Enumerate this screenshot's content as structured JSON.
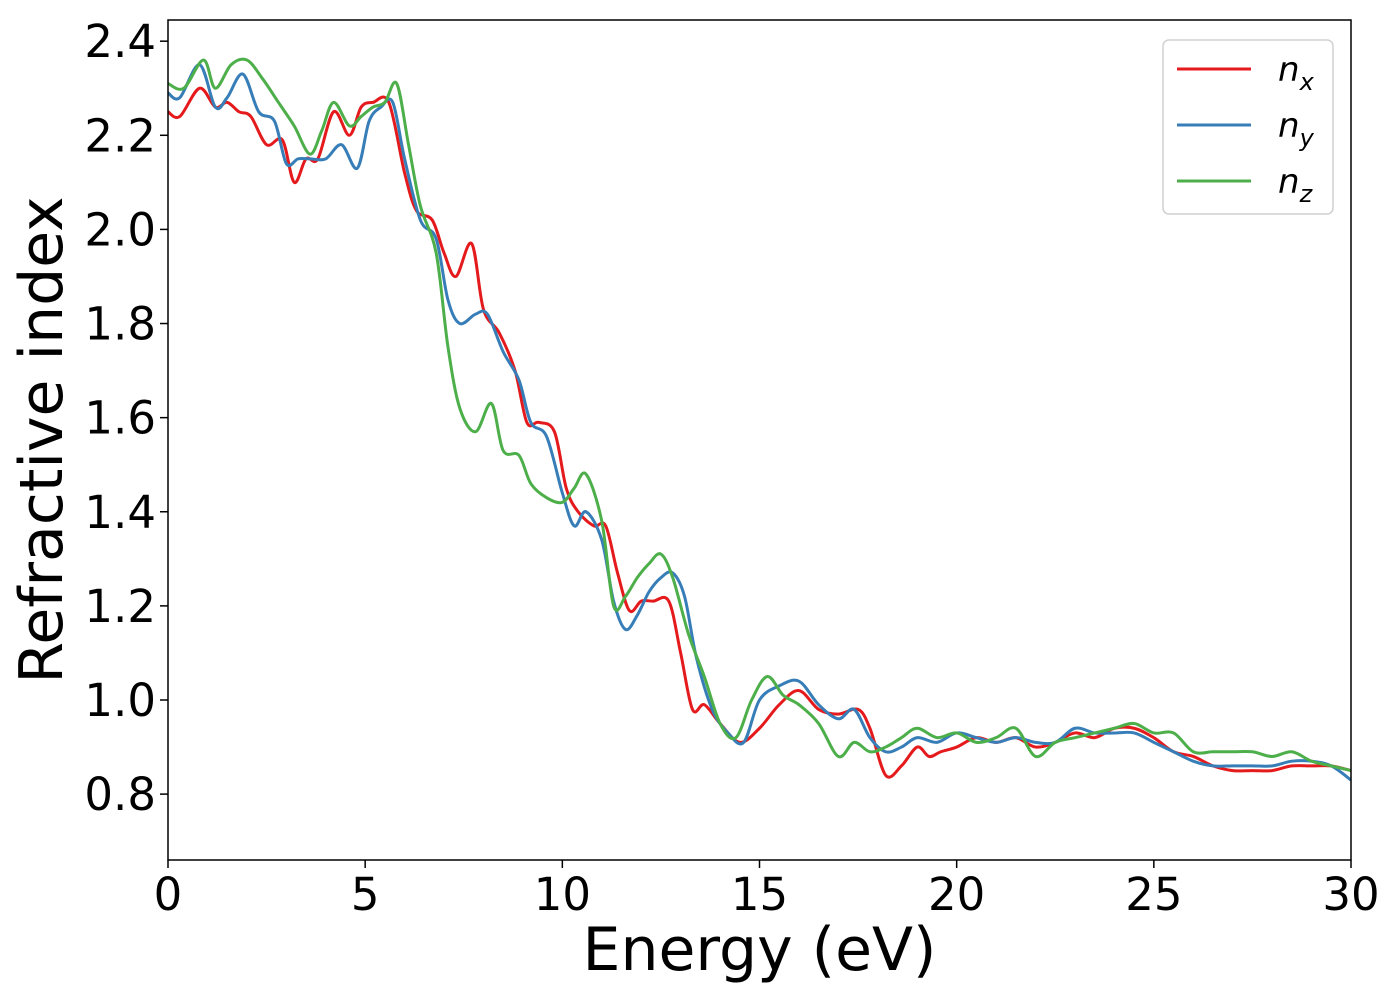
{
  "chart_data": {
    "type": "line",
    "title": "",
    "xlabel": "Energy (eV)",
    "ylabel": "Refractive index",
    "xlim": [
      0,
      30
    ],
    "ylim": [
      0.66,
      2.445
    ],
    "xticks": [
      0,
      5,
      10,
      15,
      20,
      25,
      30
    ],
    "xtick_labels": [
      "0",
      "5",
      "10",
      "15",
      "20",
      "25",
      "30"
    ],
    "yticks": [
      0.8,
      1.0,
      1.2,
      1.4,
      1.6,
      1.8,
      2.0,
      2.2,
      2.4
    ],
    "ytick_labels": [
      "0.8",
      "1.0",
      "1.2",
      "1.4",
      "1.6",
      "1.8",
      "2.0",
      "2.2",
      "2.4"
    ],
    "grid": false,
    "legend_position": "top-right",
    "series": [
      {
        "name": "n_x",
        "legend_base": "n",
        "legend_sub": "x",
        "color": "#e41a1c",
        "x": [
          0,
          0.3,
          0.8,
          1.2,
          1.5,
          1.8,
          2.1,
          2.5,
          2.9,
          3.2,
          3.5,
          3.8,
          4.2,
          4.6,
          4.9,
          5.2,
          5.6,
          6.0,
          6.3,
          6.7,
          7.0,
          7.3,
          7.7,
          8.0,
          8.4,
          8.8,
          9.1,
          9.4,
          9.8,
          10.1,
          10.4,
          10.8,
          11.1,
          11.4,
          11.7,
          12.0,
          12.3,
          12.7,
          13.0,
          13.3,
          13.6,
          14.0,
          14.5,
          15.0,
          15.5,
          16.0,
          16.5,
          17.0,
          17.5,
          17.8,
          18.2,
          18.6,
          19.0,
          19.3,
          19.6,
          20.0,
          20.5,
          21.0,
          21.5,
          22.0,
          22.5,
          23.0,
          23.5,
          24.0,
          24.5,
          25.0,
          25.5,
          26.0,
          26.5,
          27.0,
          27.5,
          28.0,
          28.5,
          29.0,
          29.5,
          30.0
        ],
        "y": [
          2.25,
          2.24,
          2.3,
          2.26,
          2.27,
          2.25,
          2.24,
          2.18,
          2.19,
          2.1,
          2.15,
          2.15,
          2.25,
          2.2,
          2.26,
          2.27,
          2.27,
          2.12,
          2.04,
          2.02,
          1.95,
          1.9,
          1.97,
          1.83,
          1.78,
          1.7,
          1.59,
          1.59,
          1.57,
          1.45,
          1.4,
          1.37,
          1.37,
          1.27,
          1.19,
          1.21,
          1.21,
          1.21,
          1.1,
          0.98,
          0.99,
          0.95,
          0.91,
          0.94,
          0.99,
          1.02,
          0.98,
          0.97,
          0.98,
          0.94,
          0.84,
          0.86,
          0.9,
          0.88,
          0.89,
          0.9,
          0.92,
          0.91,
          0.92,
          0.9,
          0.91,
          0.93,
          0.92,
          0.94,
          0.94,
          0.92,
          0.89,
          0.88,
          0.86,
          0.85,
          0.85,
          0.85,
          0.86,
          0.86,
          0.86,
          0.85
        ]
      },
      {
        "name": "n_y",
        "legend_base": "n",
        "legend_sub": "y",
        "color": "#377eb8",
        "x": [
          0,
          0.3,
          0.8,
          1.2,
          1.5,
          1.9,
          2.3,
          2.7,
          3.0,
          3.3,
          3.6,
          4.0,
          4.4,
          4.8,
          5.1,
          5.4,
          5.7,
          6.0,
          6.4,
          6.8,
          7.1,
          7.4,
          7.8,
          8.1,
          8.5,
          8.9,
          9.2,
          9.6,
          10.0,
          10.3,
          10.6,
          11.0,
          11.3,
          11.6,
          11.9,
          12.2,
          12.5,
          12.8,
          13.1,
          13.4,
          13.8,
          14.2,
          14.6,
          15.0,
          15.5,
          16.0,
          16.5,
          17.0,
          17.4,
          17.8,
          18.2,
          18.6,
          19.0,
          19.5,
          20.0,
          20.5,
          21.0,
          21.5,
          22.0,
          22.5,
          23.0,
          23.5,
          24.0,
          24.5,
          25.0,
          25.5,
          26.0,
          26.5,
          27.0,
          27.5,
          28.0,
          28.5,
          29.0,
          29.5,
          30.0
        ],
        "y": [
          2.29,
          2.28,
          2.35,
          2.26,
          2.28,
          2.33,
          2.25,
          2.23,
          2.14,
          2.15,
          2.15,
          2.15,
          2.18,
          2.13,
          2.23,
          2.26,
          2.27,
          2.15,
          2.02,
          1.98,
          1.85,
          1.8,
          1.82,
          1.82,
          1.74,
          1.68,
          1.59,
          1.56,
          1.44,
          1.37,
          1.4,
          1.34,
          1.21,
          1.15,
          1.18,
          1.23,
          1.26,
          1.27,
          1.22,
          1.09,
          0.98,
          0.93,
          0.91,
          1.0,
          1.03,
          1.04,
          0.99,
          0.96,
          0.98,
          0.92,
          0.89,
          0.9,
          0.92,
          0.91,
          0.93,
          0.92,
          0.91,
          0.92,
          0.91,
          0.91,
          0.94,
          0.93,
          0.93,
          0.93,
          0.91,
          0.89,
          0.87,
          0.86,
          0.86,
          0.86,
          0.86,
          0.87,
          0.87,
          0.86,
          0.83
        ]
      },
      {
        "name": "n_z",
        "legend_base": "n",
        "legend_sub": "z",
        "color": "#4daf4a",
        "x": [
          0,
          0.4,
          0.9,
          1.2,
          1.6,
          2.0,
          2.4,
          2.8,
          3.2,
          3.6,
          3.9,
          4.2,
          4.6,
          4.9,
          5.2,
          5.5,
          5.8,
          6.1,
          6.4,
          6.8,
          7.1,
          7.4,
          7.8,
          8.2,
          8.5,
          8.9,
          9.2,
          9.6,
          10.0,
          10.3,
          10.6,
          11.0,
          11.3,
          11.6,
          11.9,
          12.2,
          12.5,
          12.8,
          13.2,
          13.6,
          14.0,
          14.4,
          14.8,
          15.2,
          15.6,
          16.0,
          16.5,
          17.0,
          17.4,
          17.8,
          18.2,
          18.6,
          19.0,
          19.5,
          20.0,
          20.5,
          21.0,
          21.5,
          22.0,
          22.5,
          23.0,
          23.5,
          24.0,
          24.5,
          25.0,
          25.5,
          26.0,
          26.5,
          27.0,
          27.5,
          28.0,
          28.5,
          29.0,
          29.5,
          30.0
        ],
        "y": [
          2.31,
          2.3,
          2.36,
          2.3,
          2.35,
          2.36,
          2.32,
          2.27,
          2.22,
          2.16,
          2.21,
          2.27,
          2.22,
          2.24,
          2.26,
          2.27,
          2.31,
          2.18,
          2.05,
          1.95,
          1.75,
          1.62,
          1.57,
          1.63,
          1.53,
          1.52,
          1.46,
          1.43,
          1.42,
          1.45,
          1.48,
          1.38,
          1.2,
          1.22,
          1.26,
          1.29,
          1.31,
          1.26,
          1.14,
          1.05,
          0.95,
          0.92,
          1.0,
          1.05,
          1.01,
          0.99,
          0.95,
          0.88,
          0.91,
          0.89,
          0.9,
          0.92,
          0.94,
          0.92,
          0.93,
          0.91,
          0.92,
          0.94,
          0.88,
          0.91,
          0.92,
          0.93,
          0.94,
          0.95,
          0.93,
          0.93,
          0.89,
          0.89,
          0.89,
          0.89,
          0.88,
          0.89,
          0.87,
          0.86,
          0.85
        ]
      }
    ]
  }
}
